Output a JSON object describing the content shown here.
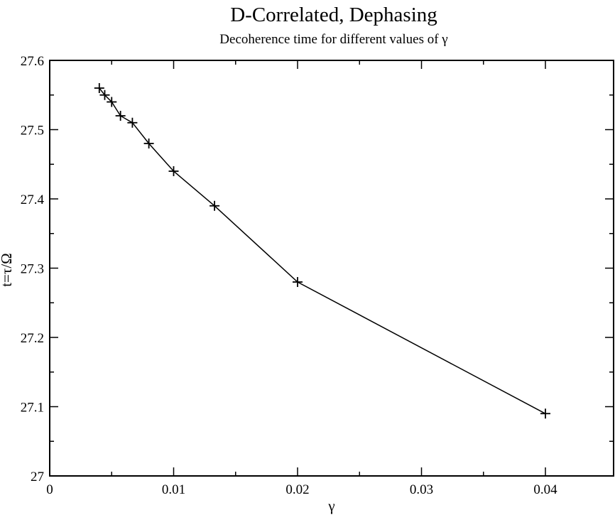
{
  "chart_data": {
    "type": "line",
    "title": "D-Correlated, Dephasing",
    "subtitle": "Decoherence time for different values of γ",
    "xlabel": "γ",
    "ylabel": "t=τ/Ω",
    "xlim": [
      0,
      0.0455
    ],
    "ylim": [
      27.0,
      27.6
    ],
    "xticks": [
      0,
      0.01,
      0.02,
      0.03,
      0.04
    ],
    "xtick_labels": [
      "0",
      "0.01",
      "0.02",
      "0.03",
      "0.04"
    ],
    "yticks": [
      27.0,
      27.1,
      27.2,
      27.3,
      27.4,
      27.5,
      27.6
    ],
    "ytick_labels": [
      "27",
      "27.1",
      "27.2",
      "27.3",
      "27.4",
      "27.5",
      "27.6"
    ],
    "grid": false,
    "marker": "plus",
    "series": [
      {
        "x": [
          0.004,
          0.00444,
          0.005,
          0.00571,
          0.00667,
          0.008,
          0.01,
          0.0133,
          0.02,
          0.04
        ],
        "y": [
          27.56,
          27.55,
          27.54,
          27.52,
          27.51,
          27.48,
          27.44,
          27.39,
          27.28,
          27.09
        ]
      }
    ]
  }
}
